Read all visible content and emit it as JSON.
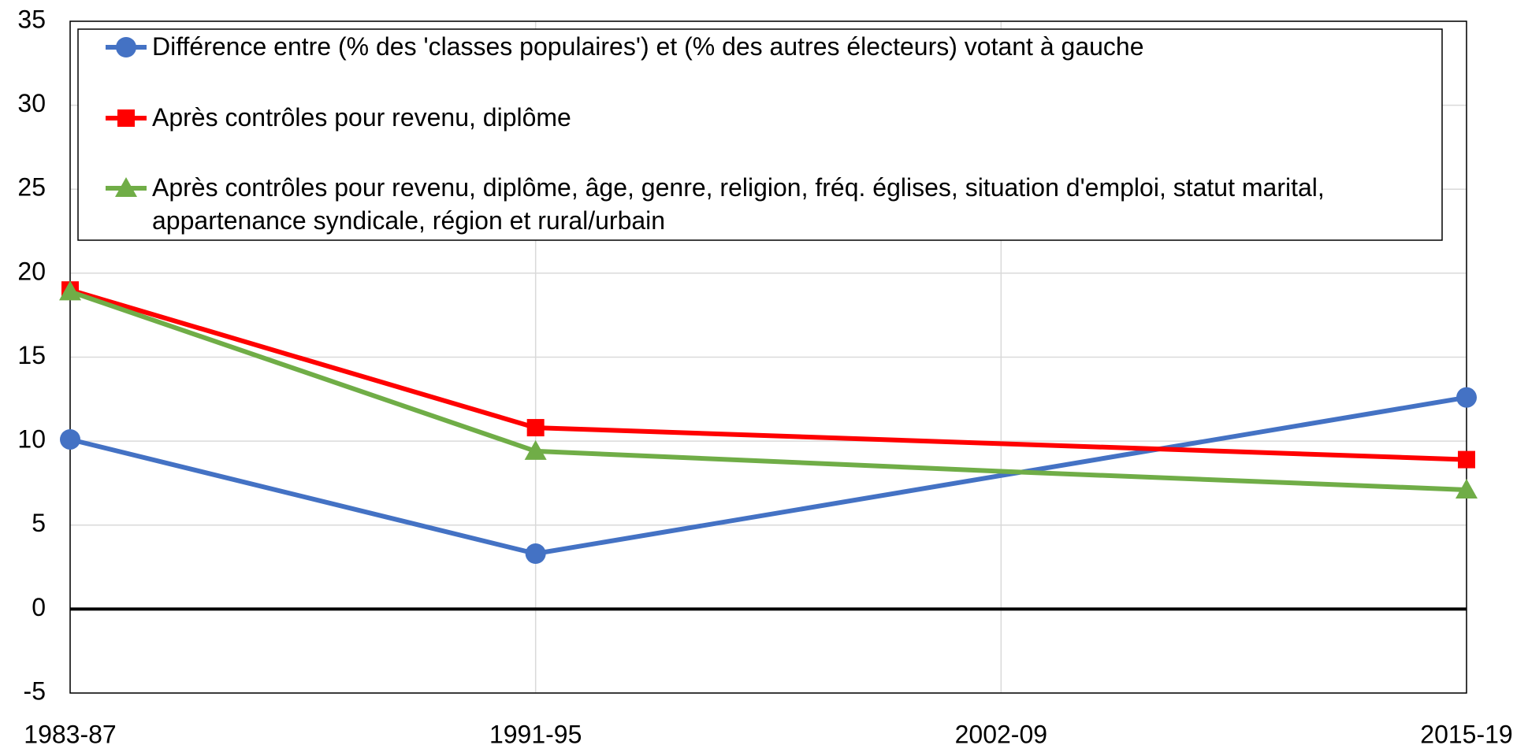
{
  "chart_data": {
    "type": "line",
    "categories": [
      "1983-87",
      "1991-95",
      "2002-09",
      "2015-19"
    ],
    "series": [
      {
        "name": "Différence entre (% des 'classes populaires') et (% des autres électeurs) votant à gauche",
        "color": "#4472c4",
        "marker": "circle",
        "values": [
          10.1,
          3.3,
          7.95,
          12.6
        ],
        "markers": [
          true,
          true,
          false,
          true
        ]
      },
      {
        "name": "Après contrôles pour revenu, diplôme",
        "color": "#ff0000",
        "marker": "square",
        "values": [
          19.0,
          10.8,
          9.85,
          8.9
        ],
        "markers": [
          true,
          true,
          false,
          true
        ]
      },
      {
        "name": "Après contrôles pour revenu, diplôme, âge, genre, religion, fréq. églises, situation d'emploi, statut marital, appartenance syndicale, région et rural/urbain",
        "color": "#70ad47",
        "marker": "triangle",
        "values": [
          18.9,
          9.4,
          8.2,
          7.1
        ],
        "markers": [
          true,
          true,
          false,
          true
        ]
      }
    ],
    "ylim": [
      -5,
      35
    ],
    "yticks": [
      -5,
      0,
      5,
      10,
      15,
      20,
      25,
      30,
      35
    ],
    "grid": true,
    "zero_line": true,
    "legend": "top"
  }
}
